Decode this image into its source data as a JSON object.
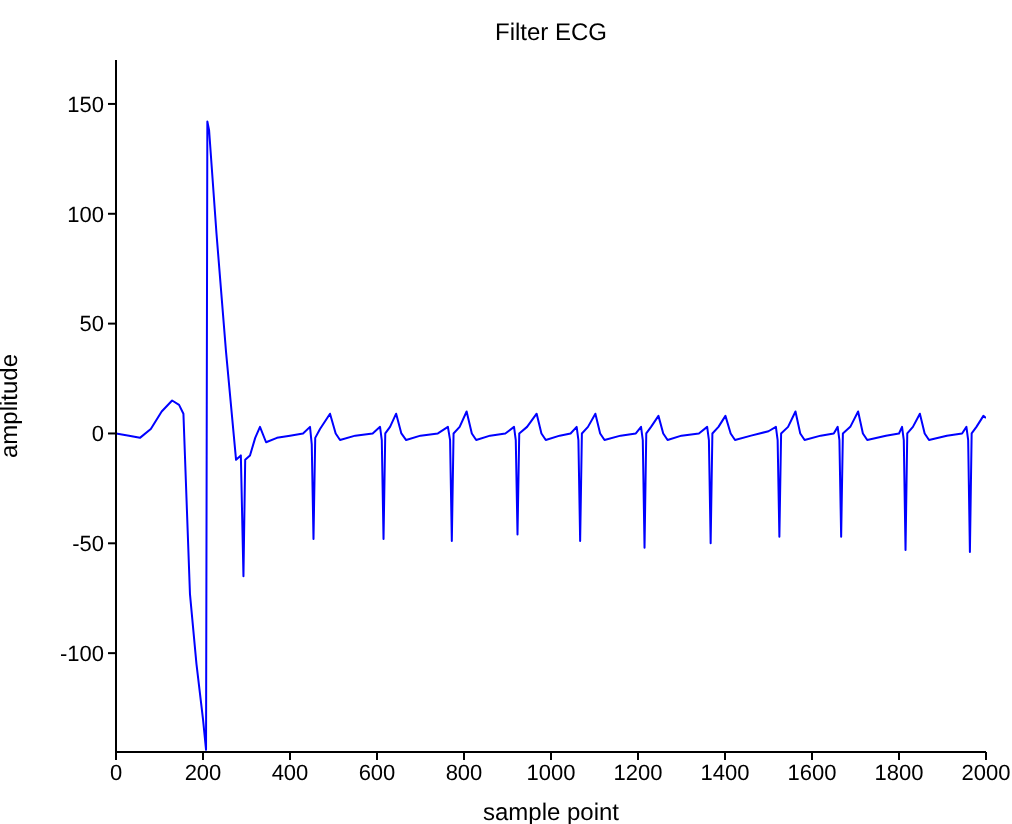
{
  "chart_data": {
    "type": "line",
    "title": "Filter ECG",
    "xlabel": "sample point",
    "ylabel": "amplitude",
    "xlim": [
      0,
      2000
    ],
    "ylim": [
      -145,
      170
    ],
    "xticks": [
      0,
      200,
      400,
      600,
      800,
      1000,
      1200,
      1400,
      1600,
      1800,
      2000
    ],
    "yticks": [
      -100,
      -50,
      0,
      50,
      100,
      150
    ],
    "grid": false,
    "legend": false,
    "marker": "none",
    "line_style": "solid",
    "x": [
      0,
      30,
      55,
      80,
      105,
      129,
      145,
      155,
      170,
      185,
      200,
      207,
      210,
      214,
      231,
      253,
      276,
      287,
      293,
      297,
      308,
      320,
      331,
      345,
      370,
      400,
      430,
      446,
      450,
      454,
      458,
      469,
      492,
      505,
      515,
      550,
      590,
      607,
      611,
      615,
      619,
      630,
      644,
      656,
      667,
      700,
      740,
      763,
      768,
      772,
      776,
      790,
      806,
      818,
      828,
      860,
      895,
      915,
      919,
      923,
      927,
      945,
      967,
      978,
      988,
      1020,
      1045,
      1059,
      1063,
      1067,
      1071,
      1085,
      1102,
      1113,
      1123,
      1160,
      1195,
      1207,
      1211,
      1215,
      1219,
      1230,
      1247,
      1258,
      1268,
      1300,
      1340,
      1359,
      1363,
      1367,
      1371,
      1385,
      1401,
      1413,
      1423,
      1460,
      1500,
      1517,
      1521,
      1525,
      1529,
      1545,
      1562,
      1573,
      1583,
      1620,
      1650,
      1659,
      1663,
      1667,
      1671,
      1688,
      1706,
      1717,
      1727,
      1770,
      1800,
      1807,
      1811,
      1815,
      1819,
      1832,
      1848,
      1859,
      1869,
      1910,
      1945,
      1955,
      1959,
      1963,
      1967,
      1978,
      1994,
      2000
    ],
    "series": [
      {
        "color": "#0000ff",
        "values": [
          0,
          -1,
          -2,
          2,
          10,
          15,
          13,
          9,
          -73,
          -105,
          -130,
          -144,
          142,
          138,
          91,
          37,
          -12,
          -10,
          -65,
          -12,
          -10,
          -2,
          3,
          -4,
          -2,
          -1,
          0,
          3,
          -5,
          -48,
          -2,
          2,
          9,
          0,
          -3,
          -1,
          0,
          3,
          -3,
          -48,
          0,
          3,
          9,
          0,
          -3,
          -1,
          0,
          3,
          -3,
          -49,
          0,
          3,
          10,
          0,
          -3,
          -1,
          0,
          3,
          -3,
          -46,
          0,
          3,
          9,
          0,
          -3,
          -1,
          0,
          3,
          -3,
          -49,
          0,
          3,
          9,
          0,
          -3,
          -1,
          0,
          3,
          -3,
          -52,
          0,
          3,
          8,
          0,
          -3,
          -1,
          0,
          3,
          -3,
          -50,
          0,
          3,
          8,
          0,
          -3,
          -1,
          1,
          3,
          -3,
          -47,
          0,
          3,
          10,
          0,
          -3,
          -1,
          0,
          3,
          -3,
          -47,
          0,
          3,
          10,
          0,
          -3,
          -1,
          0,
          3,
          -3,
          -53,
          0,
          3,
          9,
          0,
          -3,
          -1,
          0,
          3,
          -3,
          -54,
          0,
          3,
          8,
          7
        ]
      }
    ]
  }
}
